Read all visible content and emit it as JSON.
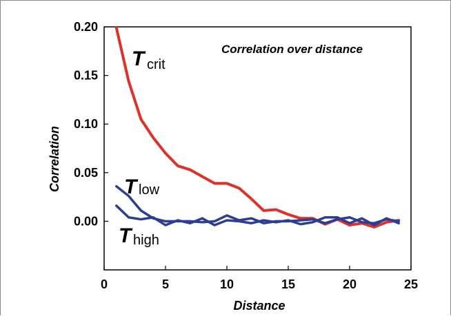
{
  "chart_data": {
    "type": "line",
    "title": "Correlation over distance",
    "xlabel": "Distance",
    "ylabel": "Correlation",
    "xlim": [
      0,
      25
    ],
    "ylim": [
      -0.05,
      0.2
    ],
    "x_ticks": [
      0,
      5,
      10,
      15,
      20,
      25
    ],
    "y_ticks": [
      0.0,
      0.05,
      0.1,
      0.15,
      0.2
    ],
    "x_tick_labels": [
      "0",
      "5",
      "10",
      "15",
      "20",
      "25"
    ],
    "y_tick_labels": [
      "0.00",
      "0.05",
      "0.10",
      "0.15",
      "0.20"
    ],
    "grid": false,
    "legend": "none",
    "series": [
      {
        "key": "crit",
        "label_main": "T",
        "label_sub": "crit",
        "color": "#e0302a",
        "x": [
          1,
          2,
          3,
          4,
          5,
          6,
          7,
          8,
          9,
          10,
          11,
          12,
          13,
          14,
          15,
          16,
          17,
          18,
          19,
          20,
          21,
          22,
          23,
          24
        ],
        "values": [
          0.199,
          0.144,
          0.105,
          0.086,
          0.07,
          0.057,
          0.053,
          0.046,
          0.039,
          0.039,
          0.034,
          0.023,
          0.011,
          0.012,
          0.007,
          0.003,
          0.003,
          -0.003,
          0.002,
          -0.004,
          -0.002,
          -0.006,
          -0.001,
          0.001
        ]
      },
      {
        "key": "low",
        "label_main": "T",
        "label_sub": "low",
        "color": "#2b3d94",
        "x": [
          1,
          2,
          3,
          4,
          5,
          6,
          7,
          8,
          9,
          10,
          11,
          12,
          13,
          14,
          15,
          16,
          17,
          18,
          19,
          20,
          21,
          22,
          23,
          24
        ],
        "values": [
          0.036,
          0.026,
          0.011,
          0.003,
          0.0,
          0.0,
          0.0,
          -0.001,
          0.0,
          0.006,
          0.001,
          0.003,
          -0.002,
          0.0,
          0.0,
          0.001,
          0.002,
          -0.002,
          0.002,
          0.004,
          -0.001,
          -0.002,
          0.002,
          0.0
        ]
      },
      {
        "key": "high",
        "label_main": "T",
        "label_sub": "high",
        "color": "#2b3d94",
        "x": [
          1,
          2,
          3,
          4,
          5,
          6,
          7,
          8,
          9,
          10,
          11,
          12,
          13,
          14,
          15,
          16,
          17,
          18,
          19,
          20,
          21,
          22,
          23,
          24
        ],
        "values": [
          0.016,
          0.004,
          0.002,
          0.004,
          -0.004,
          0.001,
          -0.002,
          0.003,
          -0.004,
          0.001,
          0.0,
          -0.002,
          0.001,
          -0.001,
          0.001,
          -0.003,
          -0.001,
          0.004,
          0.004,
          -0.002,
          0.003,
          -0.004,
          0.003,
          -0.002
        ]
      }
    ]
  }
}
